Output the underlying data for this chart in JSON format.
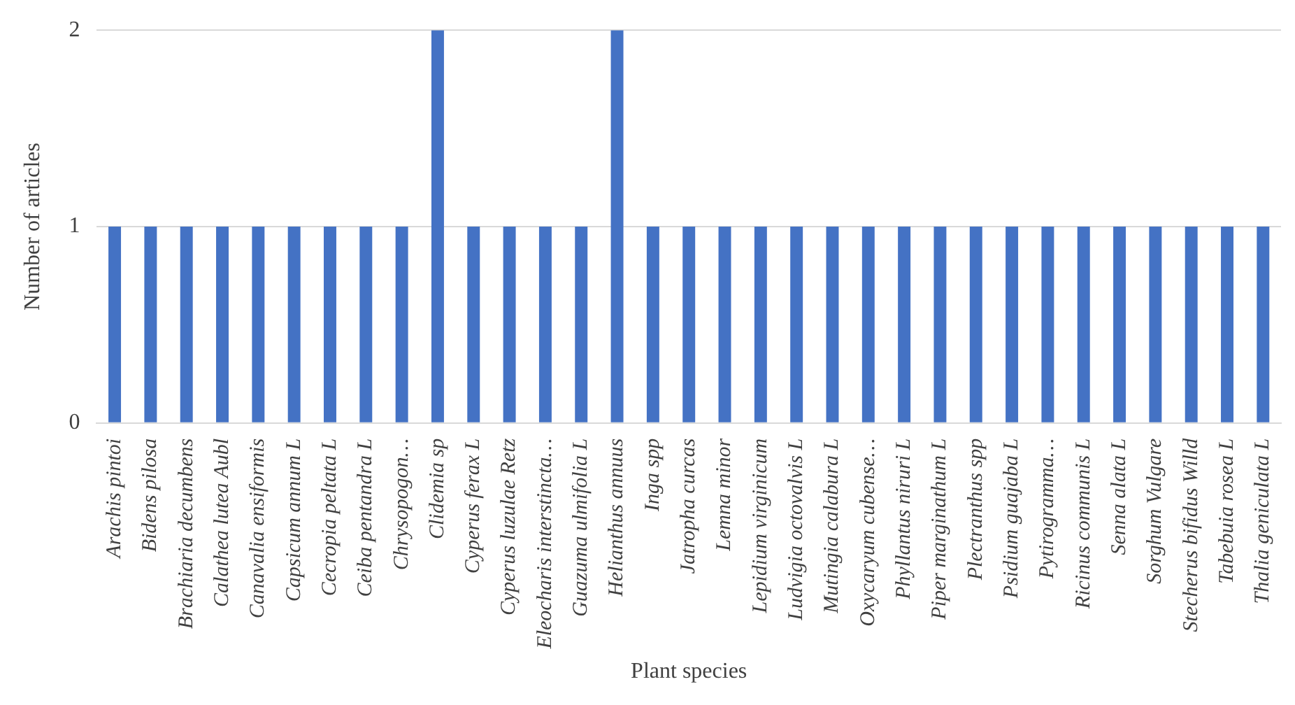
{
  "chart_data": {
    "type": "bar",
    "xlabel": "Plant species",
    "ylabel": "Number of articles",
    "categories": [
      "Arachis pintoi",
      "Bidens pilosa",
      "Brachiaria decumbens",
      "Calathea lutea Aubl",
      "Canavalia ensiformis",
      "Capsicum annum L",
      "Cecropia peltata L",
      "Ceiba pentandra L",
      "Chrysopogon…",
      "Clidemia sp",
      "Cyperus ferax L",
      "Cyperus luzulae Retz",
      "Eleocharis interstincta…",
      "Guazuma ulmifolia L",
      "Helianthus annuus",
      "Inga spp",
      "Jatropha curcas",
      "Lemna minor",
      "Lepidium virginicum",
      "Ludvigia octovalvis L",
      "Mutingia calabura L",
      "Oxycaryum cubense…",
      "Phyllantus niruri L",
      "Piper marginathum L",
      "Plectranthus spp",
      "Psidium guajaba L",
      "Pytirogramma…",
      "Ricinus communis L",
      "Senna alata L",
      "Sorghum Vulgare",
      "Stecherus bifidus Willd",
      "Tabebuia rosea L",
      "Thalia geniculata L"
    ],
    "values": [
      1,
      1,
      1,
      1,
      1,
      1,
      1,
      1,
      1,
      2,
      1,
      1,
      1,
      1,
      2,
      1,
      1,
      1,
      1,
      1,
      1,
      1,
      1,
      1,
      1,
      1,
      1,
      1,
      1,
      1,
      1,
      1,
      1
    ],
    "color": "#4472c4",
    "ylim": [
      0,
      2
    ],
    "yticks": [
      0,
      1,
      2
    ],
    "grid": "y"
  }
}
